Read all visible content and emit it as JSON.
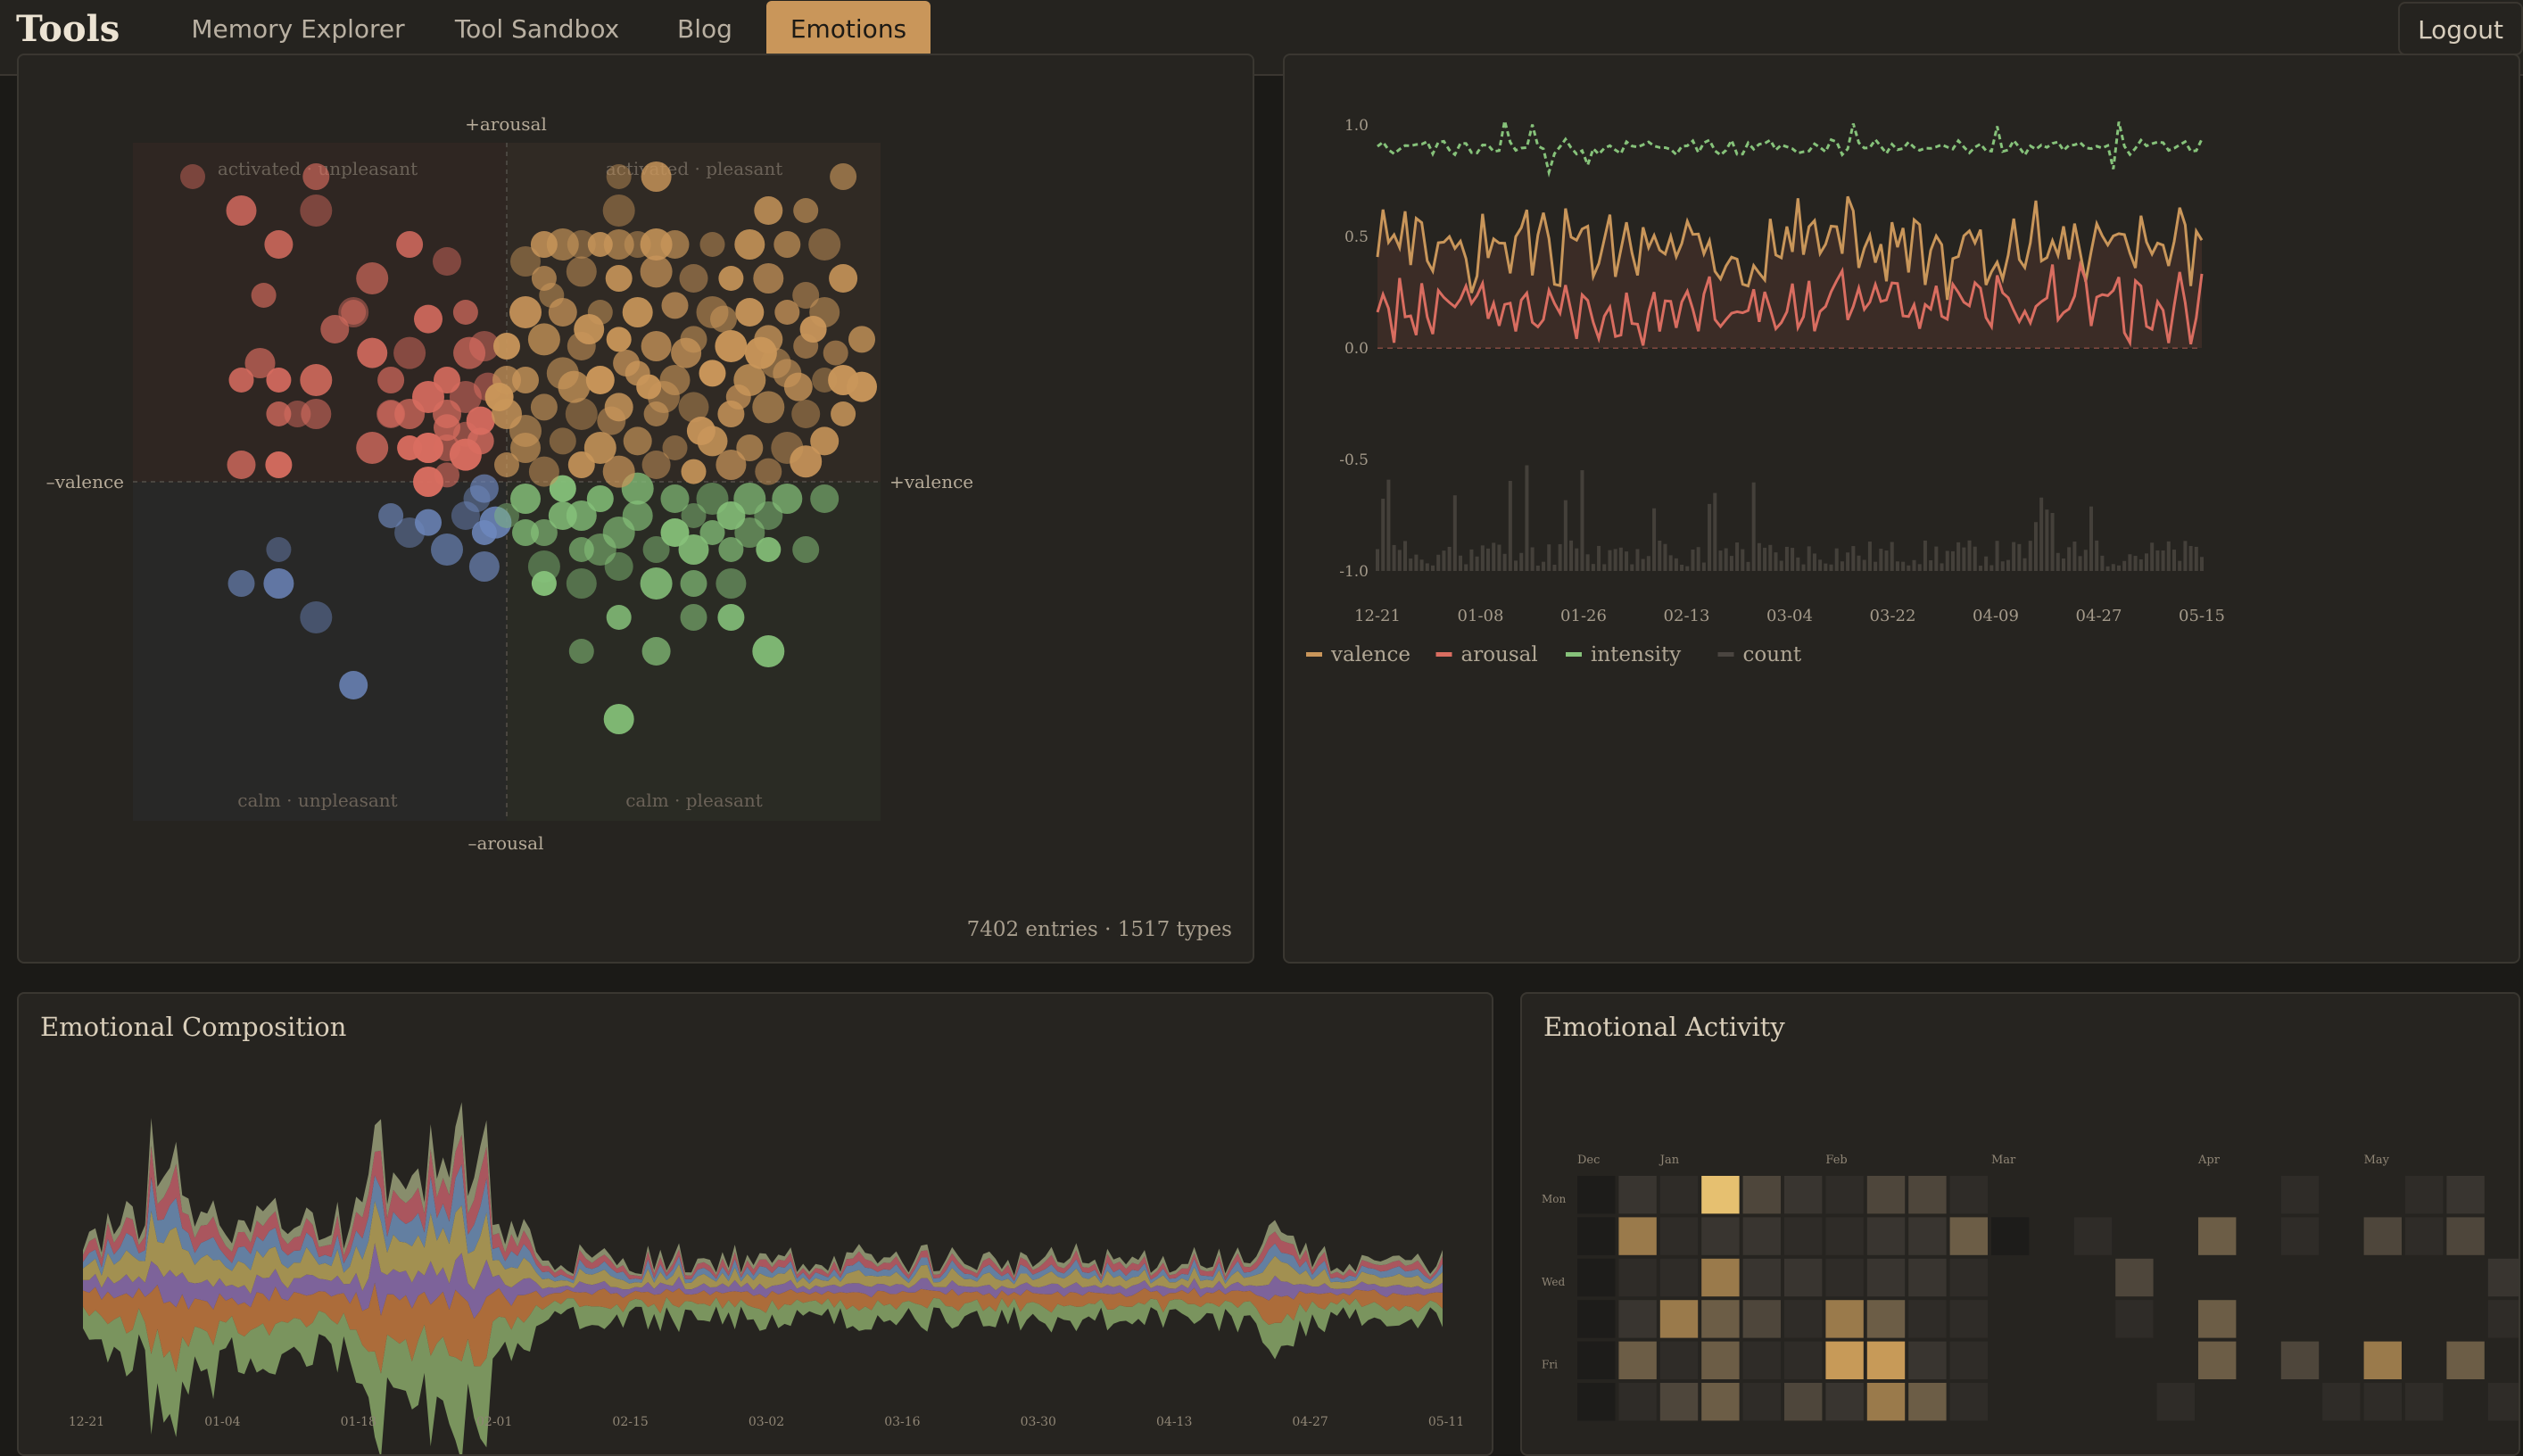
{
  "nav": {
    "brand": "Tools",
    "links": [
      "Memory Explorer",
      "Tool Sandbox",
      "Blog",
      "Emotions"
    ],
    "active": "Emotions",
    "logout": "Logout"
  },
  "colors": {
    "valence": "#c9965a",
    "arousal": "#d96d60",
    "intensity": "#86c27a",
    "count": "#4a4540",
    "blue": "#6e88be",
    "bg": "#262420"
  },
  "scatter": {
    "axis_labels": {
      "top": "+arousal",
      "bottom": "–arousal",
      "left": "–valence",
      "right": "+valence"
    },
    "quadrants": {
      "tl": "activated · unpleasant",
      "tr": "activated · pleasant",
      "bl": "calm · unpleasant",
      "br": "calm · pleasant"
    },
    "footer": "7402 entries · 1517 types"
  },
  "timeline": {
    "legend": [
      "valence",
      "arousal",
      "intensity",
      "count"
    ]
  },
  "composition": {
    "title": "Emotional Composition"
  },
  "activity": {
    "title": "Emotional Activity",
    "months": [
      "Dec",
      "Jan",
      "Feb",
      "Mar",
      "Apr",
      "May"
    ],
    "days": [
      "Mon",
      "Wed",
      "Fri"
    ]
  },
  "chart_data": [
    {
      "type": "scatter",
      "x_label_left": "–valence",
      "x_label_right": "+valence",
      "y_label_top": "+arousal",
      "y_label_bottom": "–arousal",
      "xlim": [
        -1,
        1
      ],
      "ylim": [
        -1,
        1
      ],
      "grid": true,
      "series": [
        {
          "color_key": "arousal",
          "points": [
            [
              -0.84,
              0.9
            ],
            [
              -0.71,
              0.8
            ],
            [
              -0.51,
              0.9
            ],
            [
              -0.51,
              0.8
            ],
            [
              -0.61,
              0.7
            ],
            [
              -0.65,
              0.55
            ],
            [
              -0.41,
              0.5
            ],
            [
              -0.26,
              0.7
            ],
            [
              -0.36,
              0.6
            ],
            [
              -0.16,
              0.65
            ],
            [
              -0.71,
              0.3
            ],
            [
              -0.66,
              0.35
            ],
            [
              -0.56,
              0.2
            ],
            [
              -0.51,
              0.3
            ],
            [
              -0.46,
              0.45
            ],
            [
              -0.41,
              0.5
            ],
            [
              -0.36,
              0.38
            ],
            [
              -0.31,
              0.3
            ],
            [
              -0.26,
              0.38
            ],
            [
              -0.21,
              0.48
            ],
            [
              -0.11,
              0.5
            ],
            [
              -0.06,
              0.4
            ],
            [
              -0.16,
              0.3
            ],
            [
              -0.1,
              0.38
            ],
            [
              -0.05,
              0.28
            ],
            [
              -0.61,
              0.3
            ],
            [
              -0.26,
              0.2
            ],
            [
              -0.31,
              0.2
            ],
            [
              -0.21,
              0.25
            ],
            [
              -0.16,
              0.2
            ],
            [
              -0.11,
              0.14
            ],
            [
              -0.21,
              0.1
            ],
            [
              -0.16,
              0.16
            ],
            [
              -0.11,
              0.25
            ],
            [
              -0.07,
              0.18
            ],
            [
              -0.61,
              0.2
            ],
            [
              -0.51,
              0.2
            ],
            [
              -0.61,
              0.05
            ],
            [
              -0.36,
              0.1
            ],
            [
              -0.31,
              0.2
            ],
            [
              -0.26,
              0.1
            ],
            [
              -0.21,
              0.1
            ],
            [
              -0.16,
              0.1
            ],
            [
              -0.11,
              0.08
            ],
            [
              -0.71,
              0.05
            ],
            [
              -0.16,
              0.02
            ],
            [
              -0.21,
              0.0
            ],
            [
              -0.07,
              0.12
            ]
          ]
        },
        {
          "color_key": "blue",
          "points": [
            [
              -0.61,
              -0.2
            ],
            [
              -0.61,
              -0.3
            ],
            [
              -0.71,
              -0.3
            ],
            [
              -0.51,
              -0.4
            ],
            [
              -0.41,
              -0.6
            ],
            [
              -0.31,
              -0.1
            ],
            [
              -0.26,
              -0.15
            ],
            [
              -0.21,
              -0.12
            ],
            [
              -0.16,
              -0.2
            ],
            [
              -0.11,
              -0.1
            ],
            [
              -0.06,
              -0.15
            ],
            [
              -0.06,
              -0.25
            ],
            [
              -0.08,
              -0.05
            ],
            [
              -0.03,
              -0.12
            ],
            [
              -0.06,
              -0.02
            ]
          ]
        },
        {
          "color_key": "intensity",
          "points": [
            [
              0.0,
              -0.1
            ],
            [
              0.05,
              -0.05
            ],
            [
              0.1,
              -0.15
            ],
            [
              0.1,
              -0.25
            ],
            [
              0.15,
              -0.1
            ],
            [
              0.2,
              -0.2
            ],
            [
              0.2,
              -0.3
            ],
            [
              0.25,
              -0.05
            ],
            [
              0.3,
              -0.15
            ],
            [
              0.3,
              -0.25
            ],
            [
              0.3,
              -0.4
            ],
            [
              0.35,
              -0.1
            ],
            [
              0.4,
              -0.2
            ],
            [
              0.4,
              -0.3
            ],
            [
              0.45,
              -0.05
            ],
            [
              0.5,
              -0.1
            ],
            [
              0.5,
              -0.2
            ],
            [
              0.5,
              -0.3
            ],
            [
              0.55,
              -0.05
            ],
            [
              0.6,
              -0.1
            ],
            [
              0.6,
              -0.2
            ],
            [
              0.6,
              -0.3
            ],
            [
              0.6,
              -0.4
            ],
            [
              0.65,
              -0.05
            ],
            [
              0.7,
              -0.1
            ],
            [
              0.7,
              -0.2
            ],
            [
              0.75,
              -0.05
            ],
            [
              0.8,
              -0.2
            ],
            [
              0.7,
              -0.5
            ],
            [
              0.4,
              -0.5
            ],
            [
              0.2,
              -0.5
            ],
            [
              0.3,
              -0.7
            ],
            [
              0.05,
              -0.15
            ],
            [
              0.25,
              -0.2
            ],
            [
              0.45,
              -0.15
            ],
            [
              0.55,
              -0.15
            ],
            [
              0.65,
              -0.15
            ],
            [
              0.15,
              -0.02
            ],
            [
              0.35,
              -0.02
            ],
            [
              0.85,
              -0.05
            ],
            [
              0.1,
              -0.3
            ],
            [
              0.2,
              -0.1
            ],
            [
              0.5,
              -0.4
            ]
          ]
        },
        {
          "color_key": "valence",
          "points": [
            [
              0.3,
              0.9
            ],
            [
              0.4,
              0.9
            ],
            [
              0.9,
              0.9
            ],
            [
              0.3,
              0.8
            ],
            [
              0.7,
              0.8
            ],
            [
              0.8,
              0.8
            ],
            [
              0.05,
              0.65
            ],
            [
              0.1,
              0.7
            ],
            [
              0.15,
              0.7
            ],
            [
              0.2,
              0.7
            ],
            [
              0.25,
              0.7
            ],
            [
              0.3,
              0.7
            ],
            [
              0.35,
              0.7
            ],
            [
              0.4,
              0.7
            ],
            [
              0.45,
              0.7
            ],
            [
              0.55,
              0.7
            ],
            [
              0.65,
              0.7
            ],
            [
              0.75,
              0.7
            ],
            [
              0.85,
              0.7
            ],
            [
              0.9,
              0.6
            ],
            [
              0.1,
              0.6
            ],
            [
              0.2,
              0.62
            ],
            [
              0.3,
              0.6
            ],
            [
              0.4,
              0.62
            ],
            [
              0.5,
              0.6
            ],
            [
              0.6,
              0.6
            ],
            [
              0.7,
              0.6
            ],
            [
              0.8,
              0.55
            ],
            [
              0.05,
              0.5
            ],
            [
              0.15,
              0.5
            ],
            [
              0.25,
              0.5
            ],
            [
              0.35,
              0.5
            ],
            [
              0.45,
              0.52
            ],
            [
              0.55,
              0.5
            ],
            [
              0.65,
              0.5
            ],
            [
              0.75,
              0.5
            ],
            [
              0.85,
              0.5
            ],
            [
              0.0,
              0.4
            ],
            [
              0.1,
              0.42
            ],
            [
              0.2,
              0.4
            ],
            [
              0.3,
              0.42
            ],
            [
              0.4,
              0.4
            ],
            [
              0.5,
              0.42
            ],
            [
              0.6,
              0.4
            ],
            [
              0.7,
              0.42
            ],
            [
              0.8,
              0.4
            ],
            [
              0.9,
              0.3
            ],
            [
              0.05,
              0.3
            ],
            [
              0.15,
              0.32
            ],
            [
              0.25,
              0.3
            ],
            [
              0.35,
              0.32
            ],
            [
              0.45,
              0.3
            ],
            [
              0.55,
              0.32
            ],
            [
              0.65,
              0.3
            ],
            [
              0.75,
              0.32
            ],
            [
              0.85,
              0.3
            ],
            [
              0.0,
              0.2
            ],
            [
              0.1,
              0.22
            ],
            [
              0.2,
              0.2
            ],
            [
              0.3,
              0.22
            ],
            [
              0.4,
              0.2
            ],
            [
              0.5,
              0.22
            ],
            [
              0.6,
              0.2
            ],
            [
              0.7,
              0.22
            ],
            [
              0.8,
              0.2
            ],
            [
              0.9,
              0.2
            ],
            [
              0.05,
              0.1
            ],
            [
              0.15,
              0.12
            ],
            [
              0.25,
              0.1
            ],
            [
              0.35,
              0.12
            ],
            [
              0.45,
              0.1
            ],
            [
              0.55,
              0.12
            ],
            [
              0.65,
              0.1
            ],
            [
              0.75,
              0.1
            ],
            [
              0.85,
              0.12
            ],
            [
              0.0,
              0.05
            ],
            [
              0.1,
              0.03
            ],
            [
              0.2,
              0.05
            ],
            [
              0.3,
              0.03
            ],
            [
              0.4,
              0.05
            ],
            [
              0.5,
              0.03
            ],
            [
              0.6,
              0.05
            ],
            [
              0.7,
              0.03
            ],
            [
              0.8,
              0.06
            ],
            [
              0.0,
              0.3
            ],
            [
              0.12,
              0.55
            ],
            [
              0.22,
              0.45
            ],
            [
              0.32,
              0.35
            ],
            [
              0.42,
              0.25
            ],
            [
              0.52,
              0.15
            ],
            [
              0.62,
              0.25
            ],
            [
              0.72,
              0.35
            ],
            [
              0.82,
              0.45
            ],
            [
              0.18,
              0.28
            ],
            [
              0.28,
              0.18
            ],
            [
              0.38,
              0.28
            ],
            [
              0.48,
              0.38
            ],
            [
              0.58,
              0.48
            ],
            [
              0.68,
              0.38
            ],
            [
              0.78,
              0.28
            ],
            [
              0.88,
              0.38
            ],
            [
              0.95,
              0.28
            ],
            [
              0.95,
              0.42
            ],
            [
              0.05,
              0.15
            ],
            [
              -0.02,
              0.25
            ]
          ]
        }
      ]
    },
    {
      "type": "line",
      "x": [
        "12-21",
        "01-08",
        "01-26",
        "02-13",
        "03-04",
        "03-22",
        "04-09",
        "04-27",
        "05-15"
      ],
      "ylim": [
        -1.0,
        1.0
      ],
      "yticks": [
        "1.0",
        "0.5",
        "0.0",
        "-0.5",
        "-1.0"
      ],
      "series": [
        {
          "name": "valence",
          "color_key": "valence",
          "approx_range": [
            0.3,
            0.6
          ]
        },
        {
          "name": "arousal",
          "color_key": "arousal",
          "approx_range": [
            0.0,
            0.35
          ]
        },
        {
          "name": "intensity",
          "color_key": "intensity",
          "approx_range": [
            0.75,
            0.97
          ]
        },
        {
          "name": "count",
          "color_key": "count",
          "type": "bar"
        }
      ]
    },
    {
      "type": "area",
      "title": "Emotional Composition",
      "x": [
        "12-21",
        "01-04",
        "01-18",
        "02-01",
        "02-15",
        "03-02",
        "03-16",
        "03-30",
        "04-13",
        "04-27",
        "05-11"
      ]
    },
    {
      "type": "heatmap",
      "title": "Emotional Activity",
      "months": [
        "Dec",
        "Jan",
        "Feb",
        "Mar",
        "Apr",
        "May"
      ],
      "days": [
        "Mon",
        "Wed",
        "Fri"
      ]
    }
  ]
}
